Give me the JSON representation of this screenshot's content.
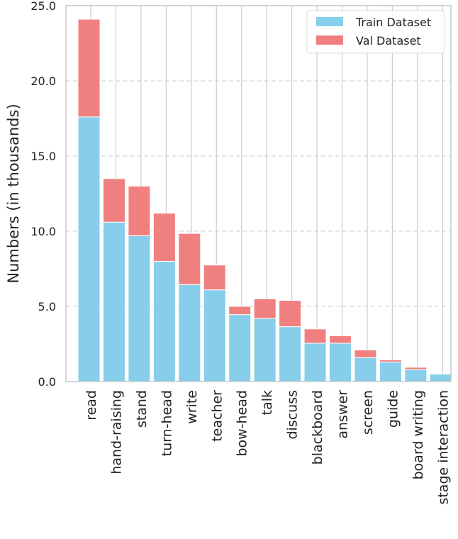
{
  "chart_data": {
    "type": "bar",
    "stacked": true,
    "title": "",
    "xlabel": "",
    "ylabel": "Numbers (in thousands)",
    "ylim": [
      0,
      25
    ],
    "yticks": [
      "0.0",
      "5.0",
      "10.0",
      "15.0",
      "20.0",
      "25.0"
    ],
    "grid": "horizontal dashed + vertical solid",
    "legend_position": "top-right",
    "categories": [
      "read",
      "hand-raising",
      "stand",
      "turn-head",
      "write",
      "teacher",
      "bow-head",
      "talk",
      "discuss",
      "blackboard",
      "answer",
      "screen",
      "guide",
      "board writing",
      "stage interaction"
    ],
    "series": [
      {
        "name": "Train Dataset",
        "color": "#87ceeb",
        "values": [
          17.6,
          10.6,
          9.7,
          8.0,
          6.45,
          6.1,
          4.45,
          4.2,
          3.65,
          2.55,
          2.55,
          1.6,
          1.3,
          0.8,
          0.5
        ]
      },
      {
        "name": "Val Dataset",
        "color": "#f08080",
        "values": [
          6.5,
          2.9,
          3.3,
          3.2,
          3.4,
          1.65,
          0.55,
          1.3,
          1.75,
          0.95,
          0.5,
          0.5,
          0.15,
          0.15,
          0.0
        ]
      }
    ]
  }
}
